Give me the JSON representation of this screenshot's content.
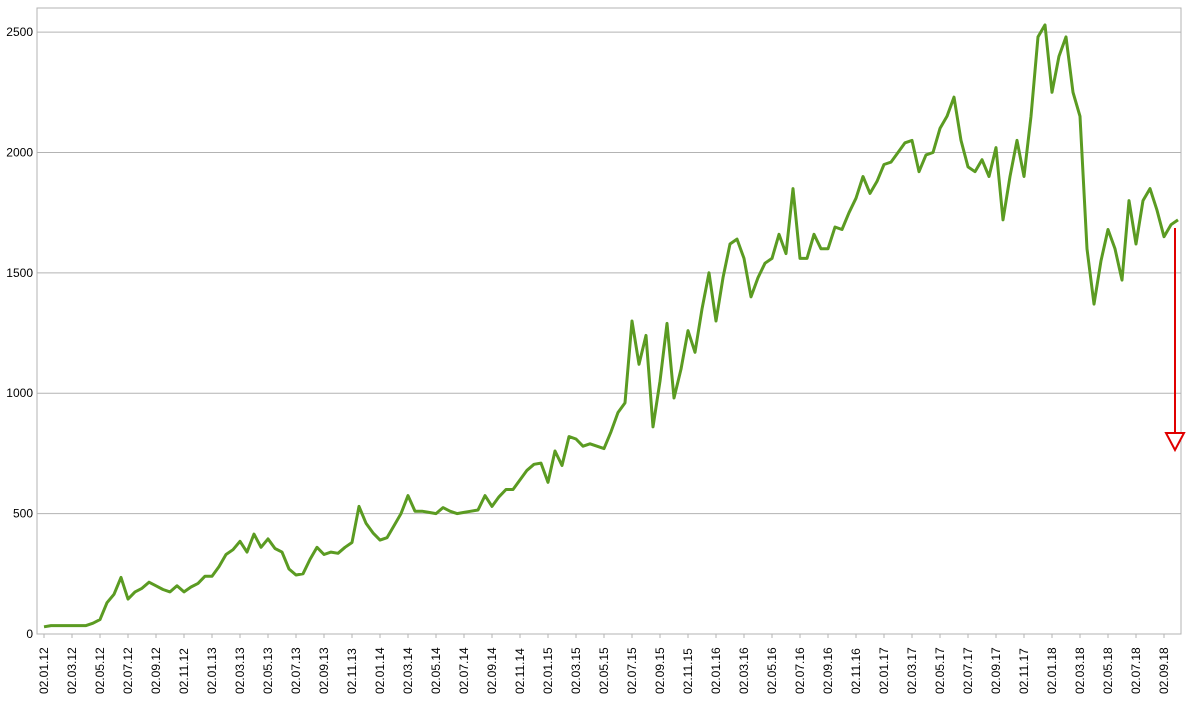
{
  "chart_data": {
    "type": "line",
    "categories": [
      "02.01.12",
      null,
      null,
      null,
      "02.03.12",
      null,
      null,
      null,
      "02.05.12",
      null,
      null,
      null,
      "02.07.12",
      null,
      null,
      null,
      "02.09.12",
      null,
      null,
      null,
      "02.11.12",
      null,
      null,
      null,
      "02.01.13",
      null,
      null,
      null,
      "02.03.13",
      null,
      null,
      null,
      "02.05.13",
      null,
      null,
      null,
      "02.07.13",
      null,
      null,
      null,
      "02.09.13",
      null,
      null,
      null,
      "02.11.13",
      null,
      null,
      null,
      "02.01.14",
      null,
      null,
      null,
      "02.03.14",
      null,
      null,
      null,
      "02.05.14",
      null,
      null,
      null,
      "02.07.14",
      null,
      null,
      null,
      "02.09.14",
      null,
      null,
      null,
      "02.11.14",
      null,
      null,
      null,
      "02.01.15",
      null,
      null,
      null,
      "02.03.15",
      null,
      null,
      null,
      "02.05.15",
      null,
      null,
      null,
      "02.07.15",
      null,
      null,
      null,
      "02.09.15",
      null,
      null,
      null,
      "02.11.15",
      null,
      null,
      null,
      "02.01.16",
      null,
      null,
      null,
      "02.03.16",
      null,
      null,
      null,
      "02.05.16",
      null,
      null,
      null,
      "02.07.16",
      null,
      null,
      null,
      "02.09.16",
      null,
      null,
      null,
      "02.11.16",
      null,
      null,
      null,
      "02.01.17",
      null,
      null,
      null,
      "02.03.17",
      null,
      null,
      null,
      "02.05.17",
      null,
      null,
      null,
      "02.07.17",
      null,
      null,
      null,
      "02.09.17",
      null,
      null,
      null,
      "02.11.17",
      null,
      null,
      null,
      "02.01.18",
      null,
      null,
      null,
      "02.03.18",
      null,
      null,
      null,
      "02.05.18",
      null,
      null,
      null,
      "02.07.18",
      null,
      null,
      null,
      "02.09.18",
      null,
      null
    ],
    "series": [
      {
        "color": "#5b9b22",
        "values": [
          30,
          35,
          35,
          35,
          35,
          35,
          35,
          45,
          60,
          130,
          165,
          235,
          145,
          175,
          190,
          215,
          200,
          185,
          175,
          200,
          175,
          195,
          210,
          240,
          240,
          280,
          330,
          350,
          385,
          340,
          415,
          360,
          395,
          355,
          340,
          270,
          245,
          250,
          310,
          360,
          330,
          340,
          335,
          360,
          380,
          530,
          460,
          420,
          390,
          400,
          450,
          500,
          575,
          510,
          510,
          505,
          500,
          525,
          510,
          500,
          505,
          510,
          515,
          575,
          530,
          570,
          600,
          600,
          640,
          680,
          705,
          710,
          630,
          760,
          700,
          820,
          810,
          780,
          790,
          780,
          770,
          840,
          920,
          960,
          1300,
          1120,
          1240,
          860,
          1050,
          1290,
          980,
          1100,
          1260,
          1170,
          1350,
          1500,
          1300,
          1480,
          1620,
          1640,
          1560,
          1400,
          1480,
          1540,
          1560,
          1660,
          1580,
          1850,
          1560,
          1560,
          1660,
          1600,
          1600,
          1690,
          1680,
          1750,
          1810,
          1900,
          1830,
          1880,
          1950,
          1960,
          2000,
          2040,
          2050,
          1920,
          1990,
          2000,
          2100,
          2150,
          2230,
          2050,
          1940,
          1920,
          1970,
          1900,
          2020,
          1720,
          1900,
          2050,
          1900,
          2150,
          2480,
          2530,
          2250,
          2400,
          2480,
          2250,
          2150,
          1600,
          1370,
          1550,
          1680,
          1600,
          1470,
          1800,
          1620,
          1800,
          1850,
          1760,
          1650,
          1700,
          1720
        ]
      }
    ],
    "ylim": [
      0,
      2600
    ],
    "yticks": [
      0,
      500,
      1000,
      1500,
      2000,
      2500
    ],
    "grid": true
  }
}
